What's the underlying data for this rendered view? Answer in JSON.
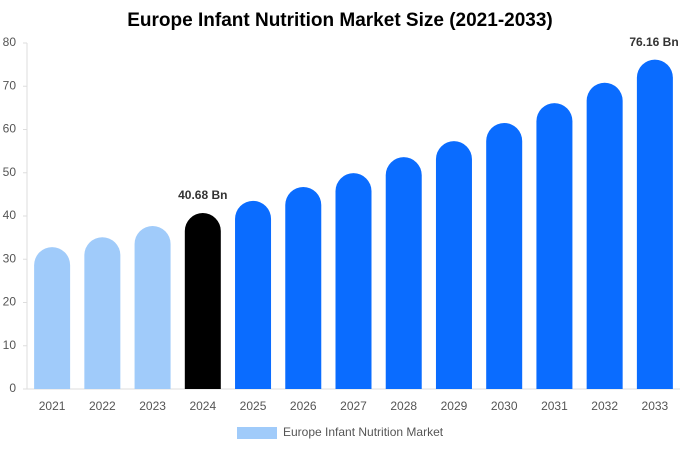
{
  "chart_data": {
    "type": "bar",
    "title": "Europe Infant Nutrition Market Size (2021-2033)",
    "categories": [
      "2021",
      "2022",
      "2023",
      "2024",
      "2025",
      "2026",
      "2027",
      "2028",
      "2029",
      "2030",
      "2031",
      "2032",
      "2033"
    ],
    "series": [
      {
        "name": "Europe Infant Nutrition Market",
        "color": "#a0cbfa",
        "values": [
          32.8,
          35.1,
          37.7,
          40.68,
          43.5,
          46.7,
          49.9,
          53.6,
          57.3,
          61.5,
          66.1,
          70.8,
          76.16
        ],
        "value_labels": [
          null,
          null,
          null,
          "40.68 Bn",
          null,
          null,
          null,
          null,
          null,
          null,
          null,
          null,
          "76.16 Bn"
        ],
        "colors": [
          "#a0cbfa",
          "#a0cbfa",
          "#a0cbfa",
          "#000000",
          "#0a6cff",
          "#0a6cff",
          "#0a6cff",
          "#0a6cff",
          "#0a6cff",
          "#0a6cff",
          "#0a6cff",
          "#0a6cff",
          "#0a6cff"
        ]
      }
    ],
    "ylim": [
      0,
      80
    ],
    "yticks": [
      0,
      10,
      20,
      30,
      40,
      50,
      60,
      70,
      80
    ],
    "grid": false,
    "legend": "bottom"
  }
}
